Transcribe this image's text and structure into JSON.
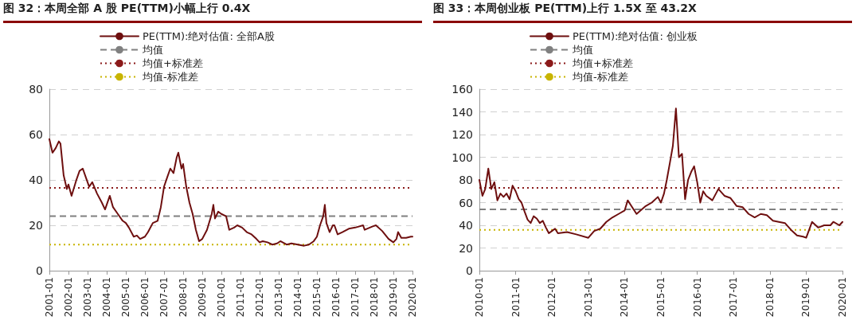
{
  "chart_data": [
    {
      "type": "line",
      "title": "图 32：本周全部 A 股 PE(TTM)小幅上行 0.4X",
      "legend": "top",
      "grid": "y",
      "marker": "none",
      "line_style": "solid",
      "xlim": [
        "2001-01",
        "2020-01"
      ],
      "xticks": [
        "2001-01",
        "2002-01",
        "2003-01",
        "2004-01",
        "2005-01",
        "2006-01",
        "2007-01",
        "2008-01",
        "2009-01",
        "2010-01",
        "2011-01",
        "2012-01",
        "2013-01",
        "2014-01",
        "2015-01",
        "2016-01",
        "2017-01",
        "2018-01",
        "2019-01",
        "2020-01"
      ],
      "ylim": [
        0,
        80
      ],
      "yticks": [
        0,
        20,
        40,
        60,
        80
      ],
      "series": [
        {
          "name": "PE(TTM):绝对估值: 全部A股",
          "color": "#6e0f0f",
          "x": [
            "2001-01",
            "2001-03",
            "2001-05",
            "2001-07",
            "2001-08",
            "2001-10",
            "2001-12",
            "2002-01",
            "2002-03",
            "2002-06",
            "2002-08",
            "2002-10",
            "2002-12",
            "2003-02",
            "2003-04",
            "2003-07",
            "2003-10",
            "2003-12",
            "2004-03",
            "2004-05",
            "2004-08",
            "2004-11",
            "2005-01",
            "2005-03",
            "2005-06",
            "2005-08",
            "2005-10",
            "2006-01",
            "2006-03",
            "2006-06",
            "2006-09",
            "2006-11",
            "2007-01",
            "2007-03",
            "2007-05",
            "2007-07",
            "2007-09",
            "2007-10",
            "2007-12",
            "2008-01",
            "2008-03",
            "2008-05",
            "2008-07",
            "2008-09",
            "2008-11",
            "2009-01",
            "2009-04",
            "2009-07",
            "2009-08",
            "2009-09",
            "2009-11",
            "2010-01",
            "2010-04",
            "2010-06",
            "2010-09",
            "2010-11",
            "2011-02",
            "2011-05",
            "2011-08",
            "2011-11",
            "2012-01",
            "2012-03",
            "2012-06",
            "2012-09",
            "2012-12",
            "2013-02",
            "2013-06",
            "2013-09",
            "2014-01",
            "2014-05",
            "2014-08",
            "2014-11",
            "2015-01",
            "2015-03",
            "2015-05",
            "2015-06",
            "2015-07",
            "2015-09",
            "2015-11",
            "2015-12",
            "2016-02",
            "2016-05",
            "2016-09",
            "2017-01",
            "2017-06",
            "2017-07",
            "2017-12",
            "2018-02",
            "2018-06",
            "2018-10",
            "2019-01",
            "2019-03",
            "2019-04",
            "2019-06",
            "2019-09",
            "2019-12",
            "2020-01"
          ],
          "values": [
            58,
            52,
            54,
            57,
            56,
            42,
            36,
            38,
            33,
            40,
            44,
            45,
            41,
            37,
            39,
            34,
            30,
            27,
            33,
            28,
            25,
            22,
            21,
            19,
            15,
            15.5,
            14,
            15,
            17,
            21,
            22,
            28,
            37,
            41,
            45,
            43,
            50,
            52,
            45,
            47,
            37,
            30,
            25,
            18,
            13,
            14,
            18,
            25,
            29,
            23,
            26,
            25,
            24,
            18,
            19,
            20,
            19,
            17,
            16,
            14,
            12.5,
            13,
            12.5,
            11.5,
            12,
            13,
            11.5,
            12,
            11.5,
            11,
            11.5,
            13,
            15,
            20,
            24,
            29,
            21,
            17,
            20,
            20,
            16,
            17,
            18.5,
            19,
            20,
            18,
            19.5,
            20,
            17.5,
            14,
            12.5,
            14,
            17,
            14.5,
            14.5,
            15,
            15
          ]
        }
      ],
      "ref_lines": [
        {
          "axis": "y",
          "value": 24,
          "label": "均值",
          "color": "#808080",
          "line_style": "dashed"
        },
        {
          "axis": "y",
          "value": 36.5,
          "label": "均值+标准差",
          "color": "#8b1a1a",
          "line_style": "dotted"
        },
        {
          "axis": "y",
          "value": 11.5,
          "label": "均值-标准差",
          "color": "#c8b400",
          "line_style": "dotted"
        }
      ]
    },
    {
      "type": "line",
      "title": "图 33：本周创业板 PE(TTM)上行 1.5X 至 43.2X",
      "legend": "top",
      "grid": "y",
      "marker": "none",
      "line_style": "solid",
      "xlim": [
        "2010-01",
        "2020-01"
      ],
      "xticks": [
        "2010-01",
        "2011-01",
        "2012-01",
        "2013-01",
        "2014-01",
        "2015-01",
        "2016-01",
        "2017-01",
        "2018-01",
        "2019-01",
        "2020-01"
      ],
      "ylim": [
        0,
        160
      ],
      "yticks": [
        0,
        20,
        40,
        60,
        80,
        100,
        120,
        140,
        160
      ],
      "series": [
        {
          "name": "PE(TTM):绝对估值: 创业板",
          "color": "#6e0f0f",
          "x": [
            "2010-01",
            "2010-02",
            "2010-03",
            "2010-04",
            "2010-05",
            "2010-06",
            "2010-07",
            "2010-08",
            "2010-09",
            "2010-10",
            "2010-11",
            "2010-12",
            "2011-01",
            "2011-02",
            "2011-03",
            "2011-04",
            "2011-05",
            "2011-06",
            "2011-07",
            "2011-08",
            "2011-09",
            "2011-10",
            "2011-11",
            "2011-12",
            "2012-01",
            "2012-02",
            "2012-03",
            "2012-06",
            "2012-09",
            "2013-01",
            "2013-03",
            "2013-05",
            "2013-07",
            "2013-09",
            "2013-11",
            "2014-01",
            "2014-02",
            "2014-05",
            "2014-08",
            "2014-10",
            "2014-12",
            "2015-01",
            "2015-02",
            "2015-03",
            "2015-04",
            "2015-05",
            "2015-06",
            "2015-07",
            "2015-08",
            "2015-09",
            "2015-10",
            "2015-11",
            "2015-12",
            "2016-01",
            "2016-02",
            "2016-03",
            "2016-04",
            "2016-06",
            "2016-08",
            "2016-10",
            "2016-12",
            "2017-02",
            "2017-04",
            "2017-06",
            "2017-08",
            "2017-10",
            "2017-12",
            "2018-02",
            "2018-04",
            "2018-06",
            "2018-08",
            "2018-10",
            "2018-12",
            "2019-01",
            "2019-03",
            "2019-05",
            "2019-07",
            "2019-09",
            "2019-10",
            "2019-12",
            "2020-01"
          ],
          "values": [
            80,
            66,
            72,
            90,
            72,
            78,
            62,
            68,
            65,
            68,
            63,
            75,
            70,
            63,
            60,
            52,
            45,
            42,
            48,
            46,
            42,
            44,
            38,
            33,
            35,
            37,
            33,
            34,
            32,
            29,
            35,
            37,
            43,
            47,
            50,
            53,
            62,
            50,
            57,
            60,
            65,
            60,
            68,
            80,
            95,
            110,
            143,
            100,
            103,
            63,
            80,
            87,
            92,
            78,
            60,
            70,
            66,
            62,
            72,
            66,
            64,
            57,
            56,
            50,
            47,
            50,
            49,
            44,
            43,
            42,
            36,
            31,
            30,
            29,
            43,
            38,
            40,
            40,
            43,
            40,
            43
          ]
        }
      ],
      "ref_lines": [
        {
          "axis": "y",
          "value": 54,
          "label": "均值",
          "color": "#808080",
          "line_style": "dashed"
        },
        {
          "axis": "y",
          "value": 73,
          "label": "均值+标准差",
          "color": "#8b1a1a",
          "line_style": "dotted"
        },
        {
          "axis": "y",
          "value": 36,
          "label": "均值-标准差",
          "color": "#c8b400",
          "line_style": "dotted"
        }
      ]
    }
  ]
}
